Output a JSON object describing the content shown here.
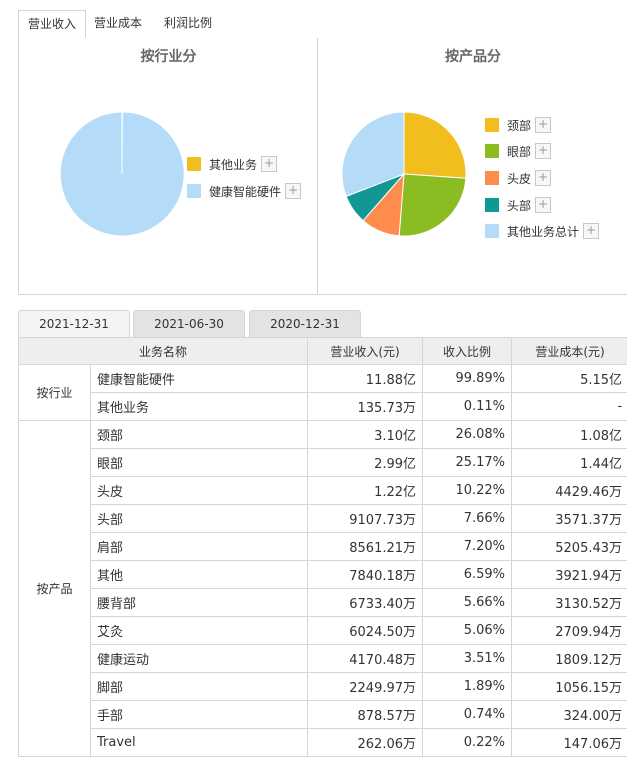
{
  "top_tabs": [
    {
      "label": "营业收入",
      "active": true
    },
    {
      "label": "营业成本",
      "active": false
    },
    {
      "label": "利润比例",
      "active": false
    }
  ],
  "industry_panel": {
    "title": "按行业分",
    "legend_plus": "+",
    "slices": [
      {
        "name": "其他业务",
        "value": 0.11,
        "color": "#f2be1e"
      },
      {
        "name": "健康智能硬件",
        "value": 99.89,
        "color": "#b4dbf7"
      }
    ]
  },
  "product_panel": {
    "title": "按产品分",
    "legend_plus": "+",
    "slices": [
      {
        "name": "颈部",
        "value": 26.08,
        "color": "#f2be1e"
      },
      {
        "name": "眼部",
        "value": 25.17,
        "color": "#8bbc21"
      },
      {
        "name": "头皮",
        "value": 10.22,
        "color": "#ff8c4c"
      },
      {
        "name": "头部",
        "value": 7.66,
        "color": "#119895"
      },
      {
        "name": "其他业务总计",
        "value": 30.87,
        "color": "#b4dbf7"
      }
    ]
  },
  "chart_data": [
    {
      "type": "pie",
      "title": "按行业分",
      "labels": [
        "其他业务",
        "健康智能硬件"
      ],
      "values": [
        0.11,
        99.89
      ],
      "legend": "right"
    },
    {
      "type": "pie",
      "title": "按产品分",
      "labels": [
        "颈部",
        "眼部",
        "头皮",
        "头部",
        "其他业务总计"
      ],
      "values": [
        26.08,
        25.17,
        10.22,
        7.66,
        30.87
      ],
      "legend": "right"
    }
  ],
  "date_tabs": [
    {
      "label": "2021-12-31",
      "active": true
    },
    {
      "label": "2021-06-30",
      "active": false
    },
    {
      "label": "2020-12-31",
      "active": false
    }
  ],
  "table": {
    "headers": [
      "业务名称",
      "营业收入(元)",
      "收入比例",
      "营业成本(元)"
    ],
    "groups": [
      {
        "label": "按行业",
        "rows": [
          {
            "name": "健康智能硬件",
            "revenue": "11.88亿",
            "ratio": "99.89%",
            "cost": "5.15亿"
          },
          {
            "name": "其他业务",
            "revenue": "135.73万",
            "ratio": "0.11%",
            "cost": "-"
          }
        ]
      },
      {
        "label": "按产品",
        "rows": [
          {
            "name": "颈部",
            "revenue": "3.10亿",
            "ratio": "26.08%",
            "cost": "1.08亿"
          },
          {
            "name": "眼部",
            "revenue": "2.99亿",
            "ratio": "25.17%",
            "cost": "1.44亿"
          },
          {
            "name": "头皮",
            "revenue": "1.22亿",
            "ratio": "10.22%",
            "cost": "4429.46万"
          },
          {
            "name": "头部",
            "revenue": "9107.73万",
            "ratio": "7.66%",
            "cost": "3571.37万"
          },
          {
            "name": "肩部",
            "revenue": "8561.21万",
            "ratio": "7.20%",
            "cost": "5205.43万"
          },
          {
            "name": "其他",
            "revenue": "7840.18万",
            "ratio": "6.59%",
            "cost": "3921.94万"
          },
          {
            "name": "腰背部",
            "revenue": "6733.40万",
            "ratio": "5.66%",
            "cost": "3130.52万"
          },
          {
            "name": "艾灸",
            "revenue": "6024.50万",
            "ratio": "5.06%",
            "cost": "2709.94万"
          },
          {
            "name": "健康运动",
            "revenue": "4170.48万",
            "ratio": "3.51%",
            "cost": "1809.12万"
          },
          {
            "name": "脚部",
            "revenue": "2249.97万",
            "ratio": "1.89%",
            "cost": "1056.15万"
          },
          {
            "name": "手部",
            "revenue": "878.57万",
            "ratio": "0.74%",
            "cost": "324.00万"
          },
          {
            "name": "Travel",
            "revenue": "262.06万",
            "ratio": "0.22%",
            "cost": "147.06万"
          }
        ]
      }
    ]
  }
}
